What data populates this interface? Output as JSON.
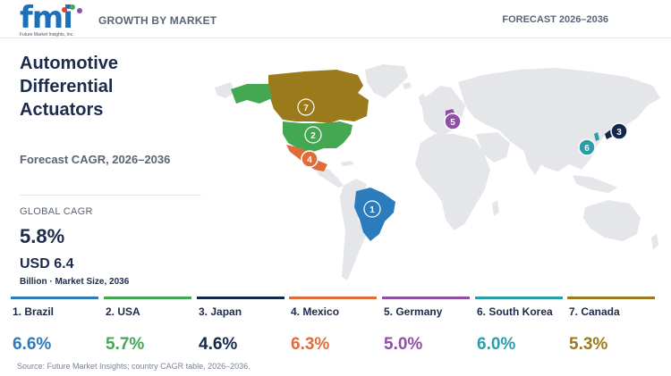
{
  "header": {
    "logo_text": "fmi",
    "logo_tagline": "Future Market Insights, Inc.",
    "left_label": "GROWTH BY MARKET",
    "right_label": "FORECAST 2026–2036"
  },
  "title": [
    "Automotive",
    "Differential",
    "Actuators"
  ],
  "subtitle": "Forecast CAGR, 2026–2036",
  "global": {
    "cagr_label": "GLOBAL CAGR",
    "cagr_value": "5.8%",
    "market_size": "USD 6.4",
    "market_size_label": "Billion · Market Size, 2036"
  },
  "markers": [
    "1",
    "2",
    "3",
    "4",
    "5",
    "6",
    "7"
  ],
  "countries": [
    {
      "rank": 1,
      "label": "1. Brazil",
      "cagr": "6.6%",
      "color": "#2c7bbd"
    },
    {
      "rank": 2,
      "label": "2. USA",
      "cagr": "5.7%",
      "color": "#44a853"
    },
    {
      "rank": 3,
      "label": "3. Japan",
      "cagr": "4.6%",
      "color": "#13284a"
    },
    {
      "rank": 4,
      "label": "4. Mexico",
      "cagr": "6.3%",
      "color": "#e06c3a"
    },
    {
      "rank": 5,
      "label": "5. Germany",
      "cagr": "5.0%",
      "color": "#8e4fa5"
    },
    {
      "rank": 6,
      "label": "6. South Korea",
      "cagr": "6.0%",
      "color": "#2a9ea6"
    },
    {
      "rank": 7,
      "label": "7. Canada",
      "cagr": "5.3%",
      "color": "#9a7a1a"
    }
  ],
  "colors": {
    "land": "#e4e6ea",
    "text_dark": "#1b2b4b",
    "text_muted": "#5a6475",
    "brand_blue": "#1d6fb8"
  },
  "source": "Source: Future Market Insights; country CAGR table, 2026–2036."
}
